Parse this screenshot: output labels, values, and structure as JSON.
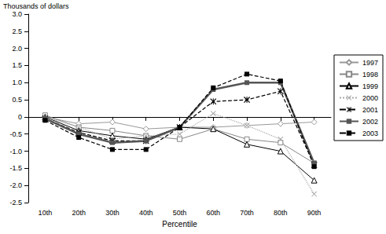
{
  "chart_data": {
    "type": "line",
    "xlabel": "Percentile",
    "ylabel": "Thousands of dollars",
    "categories": [
      "10th",
      "20th",
      "30th",
      "40th",
      "50th",
      "60th",
      "70th",
      "80th",
      "90th"
    ],
    "ylim": [
      -2.5,
      3.0
    ],
    "yticks": [
      {
        "value": -2.5,
        "label": "-2.5"
      },
      {
        "value": -2,
        "label": "-2.0"
      },
      {
        "value": -1.5,
        "label": "-1.5"
      },
      {
        "value": -1,
        "label": "-1.0"
      },
      {
        "value": -0.5,
        "label": "-0.5"
      },
      0,
      0.5,
      {
        "value": 1,
        "label": "1.0"
      },
      1.5,
      {
        "value": 2,
        "label": "2.0"
      },
      2.5,
      {
        "value": 3,
        "label": "3.0"
      }
    ],
    "grid": false,
    "legend": "right",
    "series": [
      {
        "name": "1997",
        "color": "#999999",
        "marker": "open-diamond",
        "line_style": "solid",
        "values": [
          0,
          -0.2,
          -0.15,
          -0.35,
          -0.3,
          -0.3,
          -0.25,
          -0.2,
          -0.15
        ]
      },
      {
        "name": "1998",
        "color": "#888888",
        "marker": "open-square",
        "line_style": "solid",
        "values": [
          0.05,
          -0.3,
          -0.4,
          -0.55,
          -0.65,
          -0.35,
          -0.65,
          -0.75,
          -1.35
        ]
      },
      {
        "name": "1999",
        "color": "#000000",
        "marker": "open-triangle",
        "line_style": "solid",
        "values": [
          0,
          -0.4,
          -0.55,
          -0.65,
          -0.3,
          -0.35,
          -0.8,
          -1.0,
          -1.85
        ]
      },
      {
        "name": "2000",
        "color": "#aaaaaa",
        "marker": "x",
        "line_style": "dotted",
        "values": [
          0,
          -0.3,
          -0.65,
          -0.55,
          -0.5,
          0.1,
          -0.25,
          -0.65,
          -2.25
        ]
      },
      {
        "name": "2001",
        "color": "#000000",
        "marker": "asterisk",
        "line_style": "dashed",
        "values": [
          -0.05,
          -0.45,
          -0.7,
          -0.7,
          -0.3,
          0.45,
          0.5,
          0.75,
          -1.4
        ]
      },
      {
        "name": "2002",
        "color": "#555555",
        "marker": "square",
        "line_style": "thick",
        "values": [
          -0.05,
          -0.5,
          -0.75,
          -0.7,
          -0.3,
          0.8,
          1.0,
          1.0,
          -1.35
        ]
      },
      {
        "name": "2003",
        "color": "#000000",
        "marker": "square",
        "line_style": "dashed",
        "values": [
          -0.1,
          -0.6,
          -0.95,
          -0.95,
          -0.3,
          0.85,
          1.25,
          1.05,
          -1.45
        ]
      }
    ]
  }
}
